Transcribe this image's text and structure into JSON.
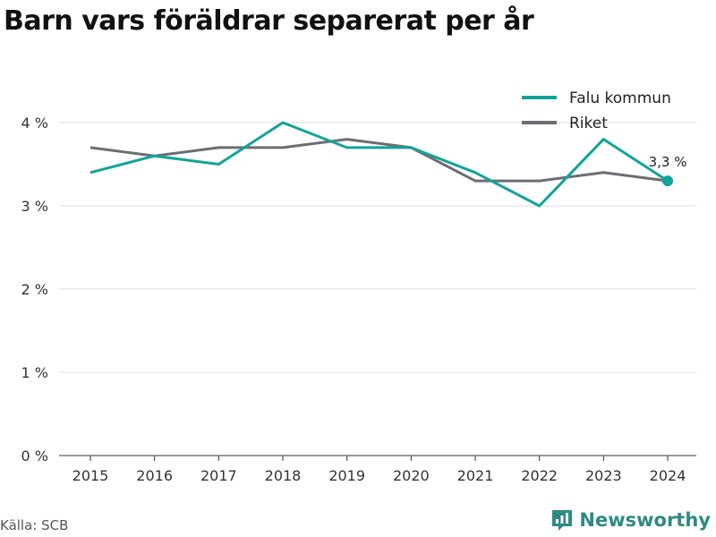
{
  "title": "Barn vars föräldrar separerat per år",
  "source": "Källa: SCB",
  "brand": "Newsworthy",
  "chart_data": {
    "type": "line",
    "x": [
      "2015",
      "2016",
      "2017",
      "2018",
      "2019",
      "2020",
      "2021",
      "2022",
      "2023",
      "2024"
    ],
    "series": [
      {
        "name": "Falu kommun",
        "color": "#12a39a",
        "values": [
          3.4,
          3.6,
          3.5,
          4.0,
          3.7,
          3.7,
          3.4,
          3.0,
          3.8,
          3.3
        ]
      },
      {
        "name": "Riket",
        "color": "#6d6d74",
        "values": [
          3.7,
          3.6,
          3.7,
          3.7,
          3.8,
          3.7,
          3.3,
          3.3,
          3.4,
          3.3
        ]
      }
    ],
    "ylim": [
      0,
      4.2
    ],
    "yticks": [
      0,
      1,
      2,
      3,
      4
    ],
    "ytick_labels": [
      "0 %",
      "1 %",
      "2 %",
      "3 %",
      "4 %"
    ],
    "end_label": "3,3 %",
    "grid": true,
    "legend_position": "top-right"
  }
}
